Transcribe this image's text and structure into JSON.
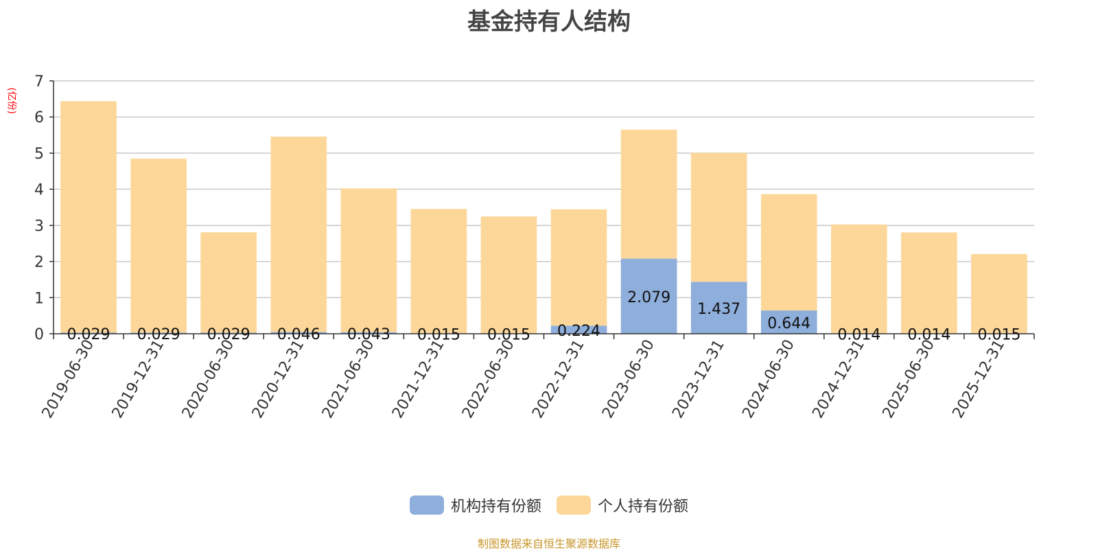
{
  "title": "基金持有人结构",
  "unit_label": "(亿份)",
  "source": "制图数据来自恒生聚源数据库",
  "colors": {
    "institutional": "#8eaedb",
    "individual": "#fdd799",
    "source_text": "#c8962b",
    "unit_text": "#ff0000"
  },
  "legend": [
    {
      "label": "机构持有份额",
      "color": "#8eaedb"
    },
    {
      "label": "个人持有份额",
      "color": "#fdd799"
    }
  ],
  "chart_data": {
    "type": "bar",
    "stacked": true,
    "title": "基金持有人结构",
    "ylabel": "(亿份)",
    "xlabel": "",
    "ylim": [
      0,
      7
    ],
    "yticks": [
      0,
      1,
      2,
      3,
      4,
      5,
      6,
      7
    ],
    "grid": true,
    "legend_position": "bottom",
    "categories": [
      "2019-06-30",
      "2019-12-31",
      "2020-06-30",
      "2020-12-31",
      "2021-06-30",
      "2021-12-31",
      "2022-06-30",
      "2022-12-31",
      "2023-06-30",
      "2023-12-31",
      "2024-06-30",
      "2024-12-31",
      "2025-06-30",
      "2025-12-31"
    ],
    "series": [
      {
        "name": "机构持有份额",
        "values": [
          0.029,
          0.029,
          0.029,
          0.046,
          0.043,
          0.015,
          0.015,
          0.224,
          2.079,
          1.437,
          0.644,
          0.014,
          0.014,
          0.015
        ],
        "labels": [
          "0.029",
          "0.029",
          "0.029",
          "0.046",
          "0.043",
          "0.015",
          "0.015",
          "0.224",
          "2.079",
          "1.437",
          "0.644",
          "0.014",
          "0.014",
          "0.015"
        ]
      },
      {
        "name": "个人持有份额",
        "values": [
          6.41,
          4.82,
          2.78,
          5.41,
          3.98,
          3.44,
          3.23,
          3.22,
          3.57,
          3.57,
          3.22,
          3.01,
          2.79,
          2.19
        ]
      }
    ]
  }
}
